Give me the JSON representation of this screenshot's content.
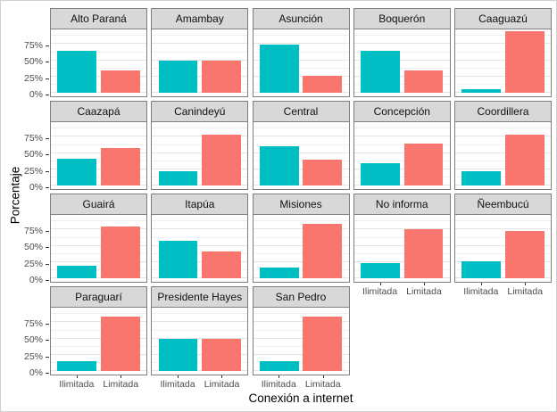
{
  "figure": {
    "x_axis_title": "Conexión a internet",
    "y_axis_title": "Porcentaje"
  },
  "colors": {
    "ilimitada": "#00BFC4",
    "limitada": "#F8766D",
    "strip_bg": "#D8D8D8",
    "panel_border": "#7F7F7F",
    "grid_major": "#E3E3E3",
    "grid_minor": "#F0F0F0",
    "axis_text": "#4D4D4D"
  },
  "chart_data": {
    "type": "bar",
    "title": "",
    "xlabel": "Conexión a internet",
    "ylabel": "Porcentaje",
    "categories": [
      "Ilimitada",
      "Limitada"
    ],
    "series_colors": [
      "#00BFC4",
      "#F8766D"
    ],
    "ylim": [
      0,
      100
    ],
    "y_tick_values": [
      0,
      25,
      50,
      75
    ],
    "y_tick_labels": [
      "0%",
      "25%",
      "50%",
      "75%"
    ],
    "grid": "on",
    "legend_position": "none",
    "facet_layout": {
      "columns": 5,
      "rows": 4
    },
    "facets": [
      {
        "name": "Alto Paraná",
        "values": [
          65,
          35
        ]
      },
      {
        "name": "Amambay",
        "values": [
          50,
          50
        ]
      },
      {
        "name": "Asunción",
        "values": [
          74,
          26
        ]
      },
      {
        "name": "Boquerón",
        "values": [
          65,
          35
        ]
      },
      {
        "name": "Caaguazú",
        "values": [
          6,
          94
        ]
      },
      {
        "name": "Caazapá",
        "values": [
          42,
          58
        ]
      },
      {
        "name": "Canindeyú",
        "values": [
          22,
          78
        ]
      },
      {
        "name": "Central",
        "values": [
          60,
          40
        ]
      },
      {
        "name": "Concepción",
        "values": [
          35,
          65
        ]
      },
      {
        "name": "Coordillera",
        "values": [
          22,
          78
        ]
      },
      {
        "name": "Guairá",
        "values": [
          20,
          80
        ]
      },
      {
        "name": "Itapúa",
        "values": [
          58,
          42
        ]
      },
      {
        "name": "Misiones",
        "values": [
          17,
          83
        ]
      },
      {
        "name": "No informa",
        "values": [
          24,
          76
        ]
      },
      {
        "name": "Ñeembucú",
        "values": [
          27,
          73
        ]
      },
      {
        "name": "Paraguarí",
        "values": [
          16,
          84
        ]
      },
      {
        "name": "Presidente Hayes",
        "values": [
          50,
          50
        ]
      },
      {
        "name": "San Pedro",
        "values": [
          16,
          84
        ]
      }
    ]
  }
}
